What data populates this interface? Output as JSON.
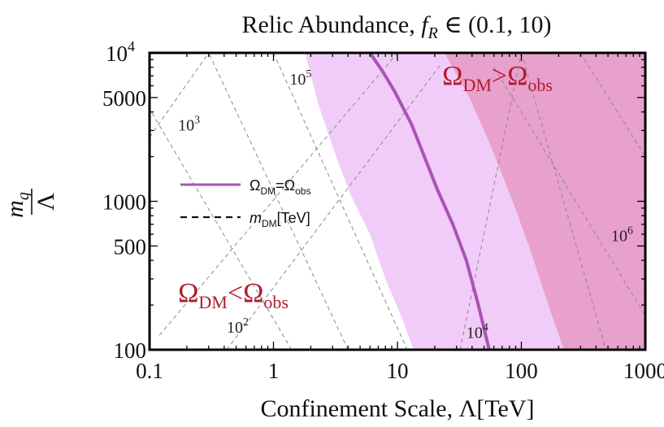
{
  "chart_data": {
    "type": "line",
    "title": "Relic Abundance, f_R ∈ (0.1, 10)",
    "title_parts": {
      "prefix": "Relic Abundance, ",
      "f": "f",
      "sub": "R",
      "suffix": " ∈ (0.1, 10)"
    },
    "xlabel": "Confinement Scale, Λ[TeV]",
    "ylabel": {
      "numerator": "m",
      "numerator_sub": "q",
      "denominator": "Λ"
    },
    "x_scale": "log",
    "y_scale": "log",
    "xlim": [
      0.1,
      1000
    ],
    "ylim": [
      100,
      10000
    ],
    "x_ticks": [
      {
        "value": 0.1,
        "label": "0.1"
      },
      {
        "value": 1,
        "label": "1"
      },
      {
        "value": 10,
        "label": "10"
      },
      {
        "value": 100,
        "label": "100"
      },
      {
        "value": 1000,
        "label": "1000"
      }
    ],
    "y_ticks": [
      {
        "value": 100,
        "label": "100"
      },
      {
        "value": 500,
        "label": "500"
      },
      {
        "value": 1000,
        "label": "1000"
      },
      {
        "value": 5000,
        "label": "5000"
      },
      {
        "value": 10000,
        "label": "10",
        "sup": "4"
      }
    ],
    "bands": [
      {
        "name": "fR range band",
        "color": "#f2ccf8",
        "left_edge": [
          [
            13.5,
            100
          ],
          [
            11.0,
            160
          ],
          [
            8.0,
            300
          ],
          [
            6.0,
            600
          ],
          [
            4.2,
            1100
          ],
          [
            3.2,
            2000
          ],
          [
            2.3,
            4500
          ],
          [
            1.8,
            10000
          ]
        ],
        "right_edge": [
          [
            220,
            100
          ],
          [
            165,
            200
          ],
          [
            115,
            500
          ],
          [
            85,
            1000
          ],
          [
            55,
            2500
          ],
          [
            38,
            5000
          ],
          [
            28,
            10000
          ]
        ]
      },
      {
        "name": "Ω_DM > Ω_obs",
        "color": "#e8a0cc",
        "left_edge": [
          [
            220,
            100
          ],
          [
            165,
            200
          ],
          [
            115,
            500
          ],
          [
            85,
            1000
          ],
          [
            55,
            2500
          ],
          [
            38,
            5000
          ],
          [
            24,
            10000
          ]
        ],
        "right_edge": [
          [
            1000,
            100
          ],
          [
            1000,
            10000
          ]
        ]
      }
    ],
    "series": [
      {
        "name": "Ω_DM=Ω_obs",
        "color": "#a855b5",
        "points": [
          [
            55,
            100
          ],
          [
            45,
            200
          ],
          [
            36,
            400
          ],
          [
            28,
            700
          ],
          [
            21,
            1200
          ],
          [
            16.5,
            2000
          ],
          [
            13,
            3300
          ],
          [
            9.5,
            5500
          ],
          [
            7.6,
            7500
          ],
          [
            6.0,
            10000
          ]
        ]
      }
    ],
    "contours": [
      {
        "label": "10",
        "sup": "2",
        "line": [
          [
            0.12,
            125
          ],
          [
            10.0,
            10000
          ]
        ],
        "label_at": [
          0.42,
          130
        ]
      },
      {
        "label": "",
        "line": [
          [
            0.42,
            100
          ],
          [
            22.0,
            8200
          ]
        ],
        "label_at": null
      },
      {
        "label": "",
        "line": [
          [
            0.1,
            2700
          ],
          [
            0.3,
            10000
          ]
        ],
        "label_at": null
      },
      {
        "label": "10",
        "sup": "3",
        "line": [
          [
            1.4,
            100
          ],
          [
            0.1,
            4200
          ]
        ],
        "label_at": [
          0.17,
          3000
        ]
      },
      {
        "label": "",
        "line": [
          [
            4.0,
            100
          ],
          [
            0.3,
            10000
          ]
        ],
        "label_at": null
      },
      {
        "label": "10",
        "sup": "4",
        "line": [
          [
            32,
            100
          ],
          [
            100,
            10000
          ]
        ],
        "label_at": [
          36,
          120
        ]
      },
      {
        "label": "10",
        "sup": "5",
        "line": [
          [
            1.0,
            10000
          ],
          [
            12,
            100
          ]
        ],
        "label_at": [
          1.35,
          6100
        ]
      },
      {
        "label": "10",
        "sup": "6",
        "line": [
          [
            100,
            10000
          ],
          [
            480,
            100
          ]
        ],
        "label_at": [
          530,
          540
        ]
      },
      {
        "label": "",
        "line": [
          [
            300,
            10000
          ],
          [
            1000,
            2000
          ]
        ],
        "label_at": null
      },
      {
        "label": "",
        "line": [
          [
            60,
            8000
          ],
          [
            1000,
            170
          ]
        ],
        "label_at": null
      }
    ],
    "annotations": [
      {
        "name": "overabundant",
        "base": "Ω",
        "sub": "DM",
        "rel": ">",
        "base2": "Ω",
        "sub2": "obs",
        "color": "#b01c2e",
        "at": [
          23,
          6100
        ]
      },
      {
        "name": "underabundant",
        "base": "Ω",
        "sub": "DM",
        "rel": "<",
        "base2": "Ω",
        "sub2": "obs",
        "color": "#b01c2e",
        "at": [
          0.17,
          210
        ]
      }
    ],
    "legend": {
      "placement": "center-left",
      "entries": [
        {
          "style": "solid",
          "color": "#a855b5",
          "text": "Ω",
          "sub": "DM",
          "text2": "=Ω",
          "sub2": "obs"
        },
        {
          "style": "dashed",
          "color": "#111111",
          "text": "m",
          "sub": "DM",
          "text2": "[TeV]"
        }
      ]
    },
    "grid": false,
    "frame": true
  }
}
